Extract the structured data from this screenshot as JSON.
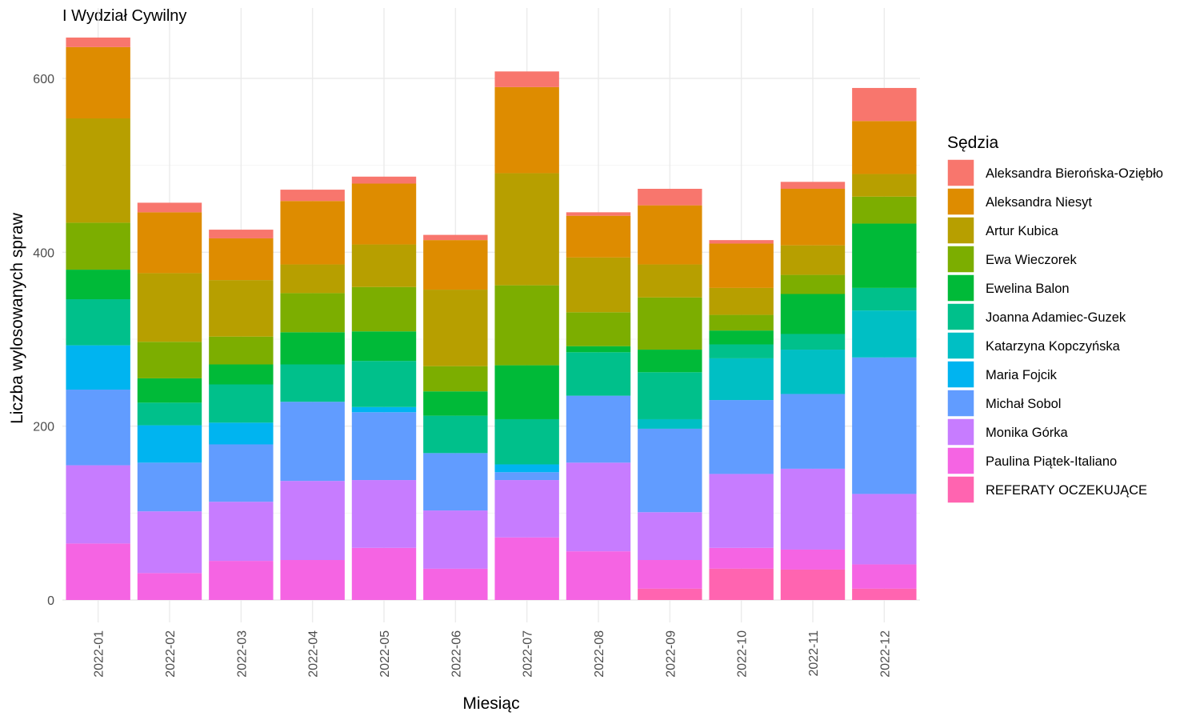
{
  "chart_data": {
    "type": "bar",
    "stacked": true,
    "title": "I Wydział Cywilny",
    "xlabel": "Miesiąc",
    "ylabel": "Liczba wylosowanych spraw",
    "ylim": [
      0,
      650
    ],
    "yticks": [
      0,
      200,
      400,
      600
    ],
    "grid": true,
    "legend_title": "Sędzia",
    "legend_position": "right",
    "categories": [
      "2022-01",
      "2022-02",
      "2022-03",
      "2022-04",
      "2022-05",
      "2022-06",
      "2022-07",
      "2022-08",
      "2022-09",
      "2022-10",
      "2022-11",
      "2022-12"
    ],
    "series": [
      {
        "name": "Aleksandra Bierońska-Oziębło",
        "color": "#F8766D",
        "values": [
          11,
          11,
          10,
          13,
          8,
          6,
          18,
          4,
          19,
          4,
          8,
          38
        ]
      },
      {
        "name": "Aleksandra Niesyt",
        "color": "#DE8C00",
        "values": [
          82,
          70,
          48,
          73,
          70,
          57,
          99,
          48,
          68,
          51,
          65,
          61
        ]
      },
      {
        "name": "Artur Kubica",
        "color": "#B79F00",
        "values": [
          120,
          79,
          65,
          33,
          49,
          88,
          129,
          63,
          38,
          31,
          34,
          26
        ]
      },
      {
        "name": "Ewa Wieczorek",
        "color": "#7CAE00",
        "values": [
          54,
          42,
          32,
          45,
          51,
          29,
          92,
          39,
          60,
          18,
          22,
          31
        ]
      },
      {
        "name": "Ewelina Balon",
        "color": "#00BA38",
        "values": [
          34,
          28,
          23,
          37,
          34,
          28,
          62,
          7,
          26,
          16,
          46,
          74
        ]
      },
      {
        "name": "Joanna Adamiec-Guzek",
        "color": "#00C08B",
        "values": [
          53,
          26,
          44,
          43,
          53,
          43,
          52,
          50,
          54,
          16,
          18,
          26
        ]
      },
      {
        "name": "Katarzyna Kopczyńska",
        "color": "#00BFC4",
        "values": [
          0,
          0,
          0,
          0,
          0,
          0,
          0,
          0,
          11,
          48,
          51,
          54
        ]
      },
      {
        "name": "Maria Fojcik",
        "color": "#00B4F0",
        "values": [
          51,
          43,
          25,
          0,
          6,
          0,
          9,
          0,
          0,
          0,
          0,
          0
        ]
      },
      {
        "name": "Michał Sobol",
        "color": "#619CFF",
        "values": [
          87,
          56,
          66,
          91,
          78,
          66,
          9,
          77,
          96,
          85,
          86,
          157
        ]
      },
      {
        "name": "Monika Górka",
        "color": "#C77CFF",
        "values": [
          90,
          71,
          68,
          91,
          78,
          67,
          66,
          102,
          55,
          85,
          93,
          81
        ]
      },
      {
        "name": "Paulina Piątek-Italiano",
        "color": "#F564E3",
        "values": [
          65,
          31,
          45,
          46,
          60,
          36,
          72,
          56,
          33,
          24,
          23,
          28
        ]
      },
      {
        "name": "REFERATY OCZEKUJĄCE",
        "color": "#FF64B0",
        "values": [
          0,
          0,
          0,
          0,
          0,
          0,
          0,
          0,
          13,
          36,
          35,
          13
        ]
      }
    ]
  }
}
